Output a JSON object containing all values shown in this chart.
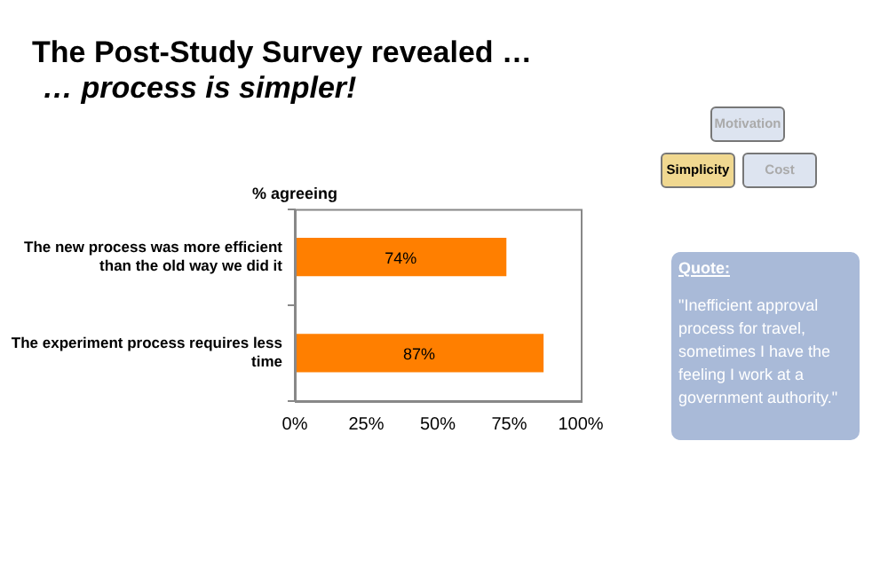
{
  "chart_data": {
    "type": "bar",
    "orientation": "horizontal",
    "title": "The Post-Study Survey revealed …",
    "subtitle": "… process is simpler!",
    "xlabel": "% agreeing",
    "categories": [
      "The new process was more efficient than the old way we did it",
      "The experiment process requires less time"
    ],
    "values": [
      74,
      87
    ],
    "value_labels": [
      "74%",
      "87%"
    ],
    "color": "#ff7f00",
    "xlim": [
      0,
      100
    ],
    "xticks": [
      {
        "value": 0,
        "label": "0%"
      },
      {
        "value": 25,
        "label": "25%"
      },
      {
        "value": 50,
        "label": "50%"
      },
      {
        "value": 75,
        "label": "75%"
      },
      {
        "value": 100,
        "label": "100%"
      }
    ],
    "grid": false,
    "legend": false,
    "annotations": [
      "Motivation",
      "Simplicity",
      "Cost",
      "Quote:",
      "\"Inefficient approval process for travel, sometimes I have the feeling I work at a government authority.\""
    ]
  }
}
